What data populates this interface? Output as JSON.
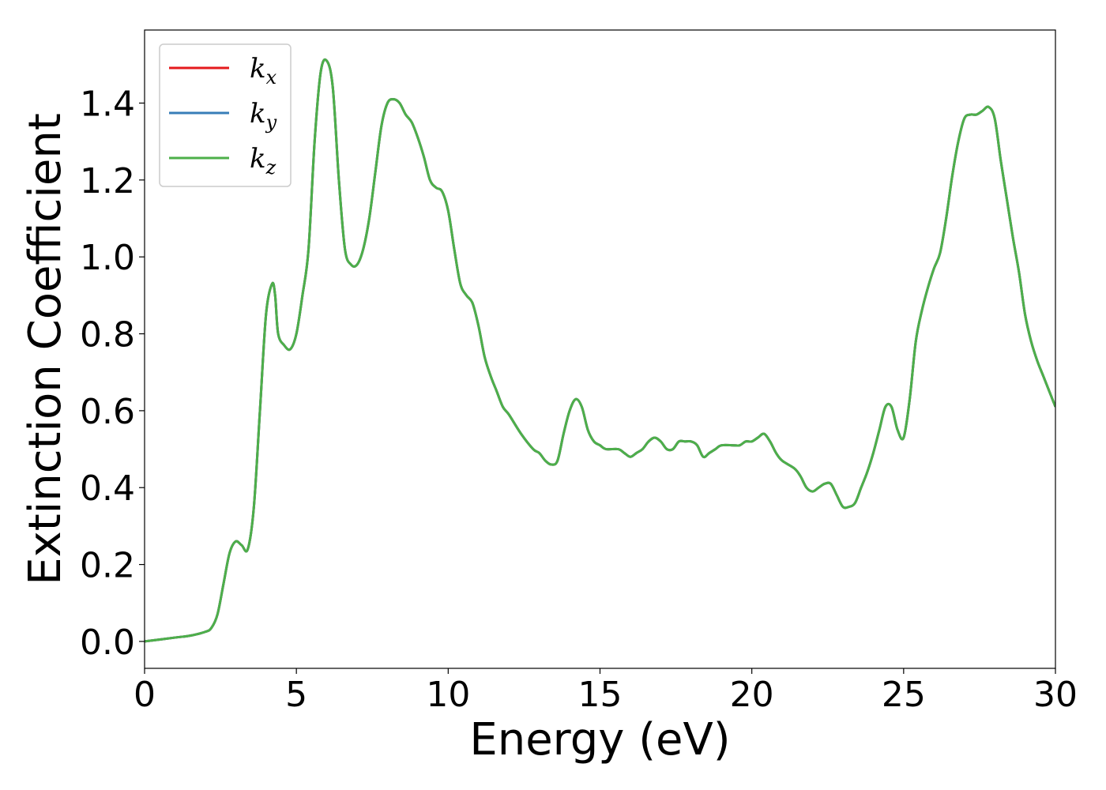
{
  "chart_data": {
    "type": "line",
    "title": "",
    "xlabel": "Energy (eV)",
    "ylabel": "Extinction Coefficient",
    "xlim": [
      0,
      30
    ],
    "ylim": [
      -0.07,
      1.59
    ],
    "xticks": [
      0,
      5,
      10,
      15,
      20,
      25,
      30
    ],
    "xtick_labels": [
      "0",
      "5",
      "10",
      "15",
      "20",
      "25",
      "30"
    ],
    "yticks": [
      0.0,
      0.2,
      0.4,
      0.6,
      0.8,
      1.0,
      1.2,
      1.4
    ],
    "ytick_labels": [
      "0.0",
      "0.2",
      "0.4",
      "0.6",
      "0.8",
      "1.0",
      "1.2",
      "1.4"
    ],
    "grid": false,
    "legend": {
      "position": "top-left",
      "entries": [
        {
          "base": "k",
          "sub": "x",
          "color": "#e41a1c"
        },
        {
          "base": "k",
          "sub": "y",
          "color": "#377eb8"
        },
        {
          "base": "k",
          "sub": "z",
          "color": "#4daf4a"
        }
      ]
    },
    "x": [
      0,
      1,
      1.5,
      2,
      2.2,
      2.4,
      2.6,
      2.8,
      3.0,
      3.2,
      3.4,
      3.6,
      3.8,
      4.0,
      4.2,
      4.3,
      4.4,
      4.6,
      4.8,
      5.0,
      5.2,
      5.4,
      5.6,
      5.8,
      6.0,
      6.2,
      6.4,
      6.6,
      6.8,
      7.0,
      7.2,
      7.4,
      7.6,
      7.8,
      8.0,
      8.2,
      8.4,
      8.6,
      8.8,
      9.0,
      9.2,
      9.4,
      9.6,
      9.8,
      10.0,
      10.2,
      10.4,
      10.6,
      10.8,
      11.0,
      11.2,
      11.4,
      11.6,
      11.8,
      12.0,
      12.4,
      12.8,
      13.0,
      13.2,
      13.4,
      13.6,
      13.8,
      14.0,
      14.2,
      14.4,
      14.6,
      14.8,
      15.0,
      15.2,
      15.6,
      15.8,
      16.0,
      16.2,
      16.4,
      16.6,
      16.8,
      17.0,
      17.2,
      17.4,
      17.6,
      17.8,
      18.0,
      18.2,
      18.4,
      18.6,
      18.8,
      19.0,
      19.4,
      19.6,
      19.8,
      20.0,
      20.2,
      20.4,
      20.6,
      20.8,
      21.0,
      21.4,
      21.6,
      21.8,
      22.0,
      22.2,
      22.4,
      22.6,
      22.8,
      23.0,
      23.2,
      23.4,
      23.6,
      23.8,
      24.0,
      24.2,
      24.4,
      24.6,
      24.8,
      25.0,
      25.2,
      25.4,
      25.6,
      25.8,
      26.0,
      26.2,
      26.4,
      26.6,
      26.8,
      27.0,
      27.2,
      27.4,
      27.6,
      27.8,
      28.0,
      28.2,
      28.4,
      28.6,
      28.8,
      29.0,
      29.2,
      29.4,
      29.6,
      29.8,
      30.0
    ],
    "series": [
      {
        "name": "k_x",
        "values": [
          0.0,
          0.01,
          0.015,
          0.025,
          0.035,
          0.07,
          0.15,
          0.23,
          0.26,
          0.25,
          0.24,
          0.35,
          0.6,
          0.85,
          0.93,
          0.9,
          0.8,
          0.77,
          0.76,
          0.8,
          0.9,
          1.02,
          1.3,
          1.48,
          1.51,
          1.44,
          1.2,
          1.02,
          0.98,
          0.98,
          1.02,
          1.1,
          1.22,
          1.34,
          1.4,
          1.41,
          1.4,
          1.37,
          1.35,
          1.31,
          1.26,
          1.2,
          1.18,
          1.17,
          1.12,
          1.02,
          0.93,
          0.9,
          0.88,
          0.82,
          0.74,
          0.69,
          0.65,
          0.61,
          0.59,
          0.54,
          0.5,
          0.49,
          0.47,
          0.46,
          0.47,
          0.54,
          0.6,
          0.63,
          0.61,
          0.55,
          0.52,
          0.51,
          0.5,
          0.5,
          0.49,
          0.48,
          0.49,
          0.5,
          0.52,
          0.53,
          0.52,
          0.5,
          0.5,
          0.52,
          0.52,
          0.52,
          0.51,
          0.48,
          0.49,
          0.5,
          0.51,
          0.51,
          0.51,
          0.52,
          0.52,
          0.53,
          0.54,
          0.52,
          0.49,
          0.47,
          0.45,
          0.43,
          0.4,
          0.39,
          0.4,
          0.41,
          0.41,
          0.38,
          0.35,
          0.35,
          0.36,
          0.4,
          0.44,
          0.49,
          0.55,
          0.61,
          0.61,
          0.55,
          0.53,
          0.63,
          0.78,
          0.86,
          0.92,
          0.97,
          1.01,
          1.1,
          1.21,
          1.3,
          1.36,
          1.37,
          1.37,
          1.38,
          1.39,
          1.36,
          1.25,
          1.15,
          1.05,
          0.96,
          0.85,
          0.78,
          0.73,
          0.69,
          0.65,
          0.61
        ]
      },
      {
        "name": "k_y",
        "values": [
          0.0,
          0.01,
          0.015,
          0.025,
          0.035,
          0.07,
          0.15,
          0.23,
          0.26,
          0.25,
          0.24,
          0.35,
          0.6,
          0.85,
          0.93,
          0.9,
          0.8,
          0.77,
          0.76,
          0.8,
          0.9,
          1.02,
          1.3,
          1.48,
          1.51,
          1.44,
          1.2,
          1.02,
          0.98,
          0.98,
          1.02,
          1.1,
          1.22,
          1.34,
          1.4,
          1.41,
          1.4,
          1.37,
          1.35,
          1.31,
          1.26,
          1.2,
          1.18,
          1.17,
          1.12,
          1.02,
          0.93,
          0.9,
          0.88,
          0.82,
          0.74,
          0.69,
          0.65,
          0.61,
          0.59,
          0.54,
          0.5,
          0.49,
          0.47,
          0.46,
          0.47,
          0.54,
          0.6,
          0.63,
          0.61,
          0.55,
          0.52,
          0.51,
          0.5,
          0.5,
          0.49,
          0.48,
          0.49,
          0.5,
          0.52,
          0.53,
          0.52,
          0.5,
          0.5,
          0.52,
          0.52,
          0.52,
          0.51,
          0.48,
          0.49,
          0.5,
          0.51,
          0.51,
          0.51,
          0.52,
          0.52,
          0.53,
          0.54,
          0.52,
          0.49,
          0.47,
          0.45,
          0.43,
          0.4,
          0.39,
          0.4,
          0.41,
          0.41,
          0.38,
          0.35,
          0.35,
          0.36,
          0.4,
          0.44,
          0.49,
          0.55,
          0.61,
          0.61,
          0.55,
          0.53,
          0.63,
          0.78,
          0.86,
          0.92,
          0.97,
          1.01,
          1.1,
          1.21,
          1.3,
          1.36,
          1.37,
          1.37,
          1.38,
          1.39,
          1.36,
          1.25,
          1.15,
          1.05,
          0.96,
          0.85,
          0.78,
          0.73,
          0.69,
          0.65,
          0.61
        ]
      },
      {
        "name": "k_z",
        "values": [
          0.0,
          0.01,
          0.015,
          0.025,
          0.035,
          0.07,
          0.15,
          0.23,
          0.26,
          0.25,
          0.24,
          0.35,
          0.6,
          0.85,
          0.93,
          0.9,
          0.8,
          0.77,
          0.76,
          0.8,
          0.9,
          1.02,
          1.3,
          1.48,
          1.51,
          1.44,
          1.2,
          1.02,
          0.98,
          0.98,
          1.02,
          1.1,
          1.22,
          1.34,
          1.4,
          1.41,
          1.4,
          1.37,
          1.35,
          1.31,
          1.26,
          1.2,
          1.18,
          1.17,
          1.12,
          1.02,
          0.93,
          0.9,
          0.88,
          0.82,
          0.74,
          0.69,
          0.65,
          0.61,
          0.59,
          0.54,
          0.5,
          0.49,
          0.47,
          0.46,
          0.47,
          0.54,
          0.6,
          0.63,
          0.61,
          0.55,
          0.52,
          0.51,
          0.5,
          0.5,
          0.49,
          0.48,
          0.49,
          0.5,
          0.52,
          0.53,
          0.52,
          0.5,
          0.5,
          0.52,
          0.52,
          0.52,
          0.51,
          0.48,
          0.49,
          0.5,
          0.51,
          0.51,
          0.51,
          0.52,
          0.52,
          0.53,
          0.54,
          0.52,
          0.49,
          0.47,
          0.45,
          0.43,
          0.4,
          0.39,
          0.4,
          0.41,
          0.41,
          0.38,
          0.35,
          0.35,
          0.36,
          0.4,
          0.44,
          0.49,
          0.55,
          0.61,
          0.61,
          0.55,
          0.53,
          0.63,
          0.78,
          0.86,
          0.92,
          0.97,
          1.01,
          1.1,
          1.21,
          1.3,
          1.36,
          1.37,
          1.37,
          1.38,
          1.39,
          1.36,
          1.25,
          1.15,
          1.05,
          0.96,
          0.85,
          0.78,
          0.73,
          0.69,
          0.65,
          0.61
        ]
      }
    ]
  }
}
